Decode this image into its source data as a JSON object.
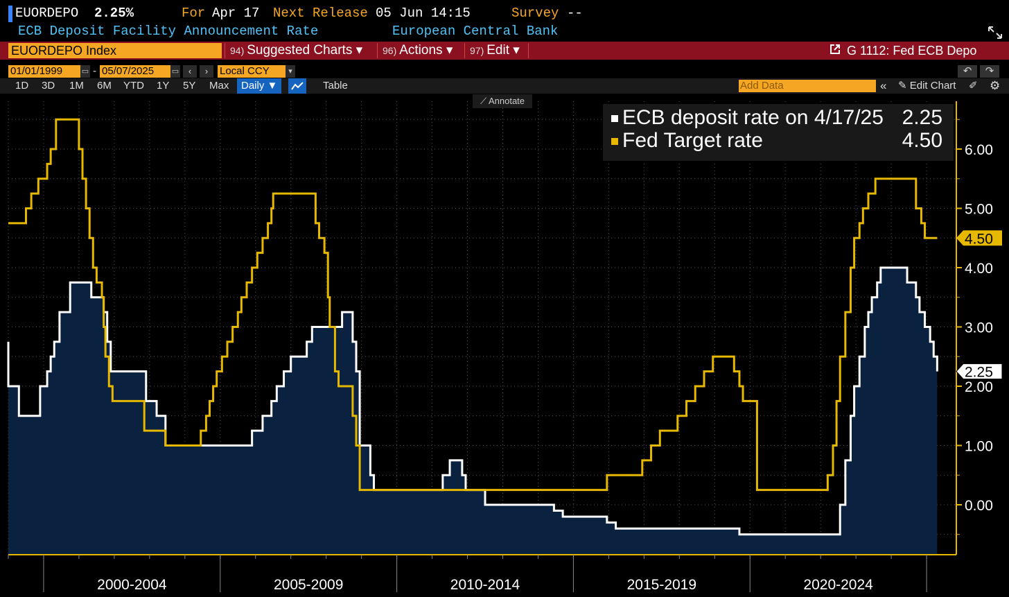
{
  "header": {
    "ticker": "EUORDEPO",
    "value": "2.25%",
    "for_label": "For",
    "for_date": "Apr 17",
    "next_release_label": "Next Release",
    "next_release_value": "05 Jun 14:15",
    "survey_label": "Survey",
    "survey_value": "--",
    "description": "ECB Deposit Facility Announcement Rate",
    "source": "European Central Bank"
  },
  "command_bar": {
    "security": "EUORDEPO Index",
    "menus": [
      {
        "num": "94)",
        "label": "Suggested Charts ▾"
      },
      {
        "num": "96)",
        "label": "Actions ▾"
      },
      {
        "num": "97)",
        "label": "Edit ▾"
      }
    ],
    "related": "G 1112: Fed ECB Depo"
  },
  "date_range": {
    "start": "01/01/1999",
    "separator": "-",
    "end": "05/07/2025",
    "currency": "Local CCY"
  },
  "toolbar": {
    "ranges": [
      "1D",
      "3D",
      "1M",
      "6M",
      "YTD",
      "1Y",
      "5Y",
      "Max"
    ],
    "frequency": "Daily ▼",
    "table_label": "Table",
    "add_data_placeholder": "Add Data",
    "edit_chart": "Edit Chart",
    "annotate": "Annotate"
  },
  "colors": {
    "accent": "#f5a623",
    "ecb_line": "#ffffff",
    "ecb_fill": "#0b2140",
    "fed_line": "#e6b800",
    "command_bar": "#8b1120"
  },
  "chart_data": {
    "type": "line",
    "xlabel": "",
    "ylabel": "",
    "x_periods": [
      "2000-2004",
      "2005-2009",
      "2010-2014",
      "2015-2019",
      "2020-2024"
    ],
    "ylim": [
      -0.75,
      6.75
    ],
    "y_ticks": [
      0,
      1,
      2,
      3,
      4,
      5,
      6
    ],
    "y_tick_labels": [
      "0.00",
      "1.00",
      "2.00",
      "3.00",
      "4.00",
      "5.00",
      "6.00"
    ],
    "grid": true,
    "legend_position": "top-right",
    "series": [
      {
        "name": "ECB deposit rate on 4/17/25",
        "last_value": "2.25",
        "style": "step-area",
        "points": [
          [
            1999.0,
            2.0
          ],
          [
            1999.3,
            1.5
          ],
          [
            1999.9,
            2.0
          ],
          [
            2000.1,
            2.25
          ],
          [
            2000.2,
            2.5
          ],
          [
            2000.3,
            2.75
          ],
          [
            2000.45,
            3.25
          ],
          [
            2000.75,
            3.75
          ],
          [
            2001.35,
            3.5
          ],
          [
            2001.7,
            3.25
          ],
          [
            2001.8,
            2.75
          ],
          [
            2001.9,
            2.25
          ],
          [
            2002.9,
            1.75
          ],
          [
            2003.2,
            1.5
          ],
          [
            2003.45,
            1.0
          ],
          [
            2005.9,
            1.25
          ],
          [
            2006.2,
            1.5
          ],
          [
            2006.45,
            1.75
          ],
          [
            2006.6,
            2.0
          ],
          [
            2006.8,
            2.25
          ],
          [
            2007.0,
            2.5
          ],
          [
            2007.45,
            2.75
          ],
          [
            2007.6,
            3.0
          ],
          [
            2008.45,
            3.25
          ],
          [
            2008.75,
            2.75
          ],
          [
            2008.85,
            2.25
          ],
          [
            2008.95,
            1.0
          ],
          [
            2009.25,
            0.5
          ],
          [
            2009.35,
            0.25
          ],
          [
            2011.3,
            0.5
          ],
          [
            2011.5,
            0.75
          ],
          [
            2011.85,
            0.5
          ],
          [
            2011.95,
            0.25
          ],
          [
            2012.5,
            0.0
          ],
          [
            2014.45,
            -0.1
          ],
          [
            2014.7,
            -0.2
          ],
          [
            2015.95,
            -0.3
          ],
          [
            2016.2,
            -0.4
          ],
          [
            2019.7,
            -0.5
          ],
          [
            2022.55,
            0.0
          ],
          [
            2022.7,
            0.75
          ],
          [
            2022.85,
            1.5
          ],
          [
            2022.95,
            2.0
          ],
          [
            2023.1,
            2.5
          ],
          [
            2023.25,
            3.0
          ],
          [
            2023.35,
            3.25
          ],
          [
            2023.45,
            3.5
          ],
          [
            2023.6,
            3.75
          ],
          [
            2023.7,
            4.0
          ],
          [
            2024.45,
            3.75
          ],
          [
            2024.7,
            3.5
          ],
          [
            2024.8,
            3.25
          ],
          [
            2024.95,
            3.0
          ],
          [
            2025.1,
            2.75
          ],
          [
            2025.2,
            2.5
          ],
          [
            2025.3,
            2.25
          ]
        ]
      },
      {
        "name": "Fed Target rate",
        "last_value": "4.50",
        "style": "step-line",
        "points": [
          [
            1999.0,
            4.75
          ],
          [
            1999.5,
            5.0
          ],
          [
            1999.65,
            5.25
          ],
          [
            1999.85,
            5.5
          ],
          [
            2000.1,
            5.75
          ],
          [
            2000.2,
            6.0
          ],
          [
            2000.35,
            6.5
          ],
          [
            2001.0,
            6.0
          ],
          [
            2001.1,
            5.5
          ],
          [
            2001.2,
            5.0
          ],
          [
            2001.3,
            4.5
          ],
          [
            2001.4,
            4.0
          ],
          [
            2001.5,
            3.75
          ],
          [
            2001.65,
            3.5
          ],
          [
            2001.7,
            3.0
          ],
          [
            2001.75,
            2.5
          ],
          [
            2001.85,
            2.0
          ],
          [
            2001.95,
            1.75
          ],
          [
            2002.85,
            1.25
          ],
          [
            2003.45,
            1.0
          ],
          [
            2004.45,
            1.25
          ],
          [
            2004.6,
            1.5
          ],
          [
            2004.7,
            1.75
          ],
          [
            2004.8,
            2.0
          ],
          [
            2004.9,
            2.25
          ],
          [
            2005.05,
            2.5
          ],
          [
            2005.2,
            2.75
          ],
          [
            2005.35,
            3.0
          ],
          [
            2005.5,
            3.25
          ],
          [
            2005.6,
            3.5
          ],
          [
            2005.75,
            3.75
          ],
          [
            2005.9,
            4.0
          ],
          [
            2006.05,
            4.25
          ],
          [
            2006.2,
            4.5
          ],
          [
            2006.35,
            4.75
          ],
          [
            2006.45,
            5.0
          ],
          [
            2006.5,
            5.25
          ],
          [
            2007.7,
            4.75
          ],
          [
            2007.8,
            4.5
          ],
          [
            2007.95,
            4.25
          ],
          [
            2008.05,
            3.5
          ],
          [
            2008.1,
            3.0
          ],
          [
            2008.25,
            2.25
          ],
          [
            2008.35,
            2.0
          ],
          [
            2008.75,
            1.5
          ],
          [
            2008.85,
            1.0
          ],
          [
            2008.95,
            0.25
          ],
          [
            2015.95,
            0.5
          ],
          [
            2016.95,
            0.75
          ],
          [
            2017.2,
            1.0
          ],
          [
            2017.45,
            1.25
          ],
          [
            2017.95,
            1.5
          ],
          [
            2018.2,
            1.75
          ],
          [
            2018.45,
            2.0
          ],
          [
            2018.7,
            2.25
          ],
          [
            2018.95,
            2.5
          ],
          [
            2019.55,
            2.25
          ],
          [
            2019.7,
            2.0
          ],
          [
            2019.8,
            1.75
          ],
          [
            2020.2,
            0.25
          ],
          [
            2022.2,
            0.5
          ],
          [
            2022.35,
            1.0
          ],
          [
            2022.45,
            1.75
          ],
          [
            2022.55,
            2.5
          ],
          [
            2022.7,
            3.25
          ],
          [
            2022.85,
            4.0
          ],
          [
            2022.95,
            4.5
          ],
          [
            2023.1,
            4.75
          ],
          [
            2023.2,
            5.0
          ],
          [
            2023.35,
            5.25
          ],
          [
            2023.55,
            5.5
          ],
          [
            2024.7,
            5.0
          ],
          [
            2024.85,
            4.75
          ],
          [
            2024.95,
            4.5
          ],
          [
            2025.3,
            4.5
          ]
        ]
      }
    ]
  }
}
